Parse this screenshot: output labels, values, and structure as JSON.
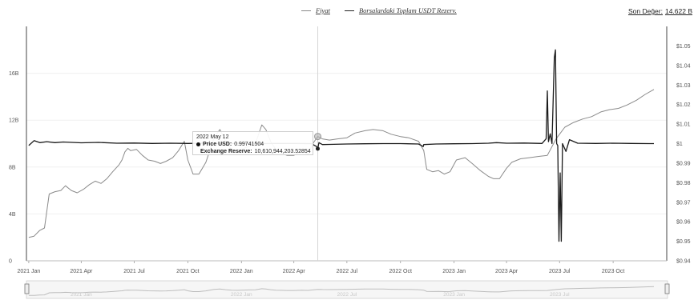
{
  "legend": {
    "price_label": "Fiyat",
    "reserve_label": "Borsalardaki Toplam USDT Rezerv."
  },
  "last_value": {
    "label": "Son Değer:",
    "value": "14.622 B"
  },
  "tooltip": {
    "date": "2022 May 12",
    "price_label": "Price USD:",
    "price_value": "0.99741504",
    "reserve_label": "Exchange Reserve:",
    "reserve_value": "10,610,944,203.52854"
  },
  "colors": {
    "price": "#1a1a1a",
    "reserve": "#8a8a8a",
    "grid": "#f0f0f0",
    "axis": "#444444"
  },
  "chart_data": {
    "type": "line",
    "x_ticks": [
      "2021 Jan",
      "2021 Apr",
      "2021 Jul",
      "2021 Oct",
      "2022 Jan",
      "2022 Apr",
      "2022 Jul",
      "2022 Oct",
      "2023 Jan",
      "2023 Apr",
      "2023 Jul",
      "2023 Oct"
    ],
    "y_left_ticks": [
      "0",
      "4B",
      "8B",
      "12B",
      "16B"
    ],
    "y_left_range": [
      0,
      20
    ],
    "y_right_ticks": [
      "$0.94",
      "$0.95",
      "$0.96",
      "$0.97",
      "$0.98",
      "$0.99",
      "$1",
      "$1.01",
      "$1.02",
      "$1.03",
      "$1.04",
      "$1.05"
    ],
    "y_right_range": [
      0.94,
      1.06
    ],
    "hover_date": "2022-05-12",
    "series": [
      {
        "name": "Borsalardaki Toplam USDT Rezerv.",
        "axis": "left",
        "unit": "B USD",
        "points": [
          [
            "2021-01-01",
            2.0
          ],
          [
            "2021-01-10",
            2.1
          ],
          [
            "2021-01-20",
            2.6
          ],
          [
            "2021-01-28",
            2.8
          ],
          [
            "2021-02-05",
            5.7
          ],
          [
            "2021-02-15",
            5.9
          ],
          [
            "2021-02-25",
            6.0
          ],
          [
            "2021-03-05",
            6.4
          ],
          [
            "2021-03-15",
            6.0
          ],
          [
            "2021-03-25",
            5.8
          ],
          [
            "2021-04-05",
            6.1
          ],
          [
            "2021-04-15",
            6.5
          ],
          [
            "2021-04-25",
            6.8
          ],
          [
            "2021-05-05",
            6.6
          ],
          [
            "2021-05-15",
            7.0
          ],
          [
            "2021-05-25",
            7.6
          ],
          [
            "2021-06-05",
            8.2
          ],
          [
            "2021-06-10",
            8.6
          ],
          [
            "2021-06-15",
            9.3
          ],
          [
            "2021-06-20",
            9.6
          ],
          [
            "2021-06-25",
            9.4
          ],
          [
            "2021-07-05",
            9.5
          ],
          [
            "2021-07-15",
            9.0
          ],
          [
            "2021-07-25",
            8.6
          ],
          [
            "2021-08-05",
            8.5
          ],
          [
            "2021-08-15",
            8.3
          ],
          [
            "2021-08-25",
            8.5
          ],
          [
            "2021-09-05",
            8.8
          ],
          [
            "2021-09-15",
            9.4
          ],
          [
            "2021-09-25",
            10.2
          ],
          [
            "2021-10-01",
            8.6
          ],
          [
            "2021-10-10",
            7.4
          ],
          [
            "2021-10-20",
            7.4
          ],
          [
            "2021-11-01",
            8.4
          ],
          [
            "2021-11-15",
            10.5
          ],
          [
            "2021-11-25",
            11.2
          ],
          [
            "2021-12-05",
            10.2
          ],
          [
            "2021-12-15",
            9.5
          ],
          [
            "2021-12-25",
            9.3
          ],
          [
            "2022-01-05",
            9.6
          ],
          [
            "2022-01-15",
            9.8
          ],
          [
            "2022-01-25",
            10.0
          ],
          [
            "2022-02-05",
            11.6
          ],
          [
            "2022-02-12",
            11.2
          ],
          [
            "2022-02-20",
            10.2
          ],
          [
            "2022-03-01",
            9.5
          ],
          [
            "2022-03-10",
            9.2
          ],
          [
            "2022-03-20",
            9.0
          ],
          [
            "2022-04-01",
            9.0
          ],
          [
            "2022-04-15",
            9.4
          ],
          [
            "2022-04-25",
            9.1
          ],
          [
            "2022-05-05",
            10.1
          ],
          [
            "2022-05-12",
            10.61
          ],
          [
            "2022-05-20",
            10.4
          ],
          [
            "2022-06-01",
            10.3
          ],
          [
            "2022-06-15",
            10.4
          ],
          [
            "2022-07-01",
            10.5
          ],
          [
            "2022-07-15",
            10.9
          ],
          [
            "2022-08-01",
            11.1
          ],
          [
            "2022-08-15",
            11.2
          ],
          [
            "2022-09-01",
            11.1
          ],
          [
            "2022-09-15",
            10.8
          ],
          [
            "2022-10-01",
            10.6
          ],
          [
            "2022-10-15",
            10.5
          ],
          [
            "2022-11-01",
            10.2
          ],
          [
            "2022-11-10",
            9.4
          ],
          [
            "2022-11-15",
            7.8
          ],
          [
            "2022-11-25",
            7.6
          ],
          [
            "2022-12-05",
            7.7
          ],
          [
            "2022-12-15",
            7.4
          ],
          [
            "2022-12-25",
            7.6
          ],
          [
            "2023-01-05",
            8.6
          ],
          [
            "2023-01-20",
            8.8
          ],
          [
            "2023-02-01",
            8.3
          ],
          [
            "2023-02-15",
            7.7
          ],
          [
            "2023-03-01",
            7.2
          ],
          [
            "2023-03-10",
            7.0
          ],
          [
            "2023-03-20",
            7.0
          ],
          [
            "2023-04-01",
            7.9
          ],
          [
            "2023-04-10",
            8.4
          ],
          [
            "2023-04-25",
            8.7
          ],
          [
            "2023-05-10",
            8.8
          ],
          [
            "2023-05-25",
            8.9
          ],
          [
            "2023-06-10",
            9.0
          ],
          [
            "2023-06-25",
            10.4
          ],
          [
            "2023-07-10",
            11.4
          ],
          [
            "2023-07-25",
            11.8
          ],
          [
            "2023-08-10",
            12.1
          ],
          [
            "2023-08-25",
            12.3
          ],
          [
            "2023-09-10",
            12.7
          ],
          [
            "2023-09-25",
            12.9
          ],
          [
            "2023-10-10",
            13.0
          ],
          [
            "2023-10-25",
            13.3
          ],
          [
            "2023-11-10",
            13.7
          ],
          [
            "2023-11-25",
            14.2
          ],
          [
            "2023-12-10",
            14.62
          ]
        ]
      },
      {
        "name": "Fiyat",
        "axis": "right",
        "unit": "USD",
        "points": [
          [
            "2021-01-01",
            0.999
          ],
          [
            "2021-01-10",
            1.0015
          ],
          [
            "2021-01-20",
            1.0005
          ],
          [
            "2021-02-01",
            1.001
          ],
          [
            "2021-02-15",
            1.0005
          ],
          [
            "2021-03-01",
            1.0008
          ],
          [
            "2021-04-01",
            1.0004
          ],
          [
            "2021-05-01",
            1.0006
          ],
          [
            "2021-06-01",
            1.0002
          ],
          [
            "2021-07-01",
            1.0003
          ],
          [
            "2021-08-01",
            1.0001
          ],
          [
            "2021-09-01",
            1.0002
          ],
          [
            "2021-10-01",
            1.0001
          ],
          [
            "2021-11-01",
            1.0002
          ],
          [
            "2021-12-01",
            1.0
          ],
          [
            "2022-01-01",
            1.0001
          ],
          [
            "2022-02-01",
            1.0
          ],
          [
            "2022-03-01",
            1.0001
          ],
          [
            "2022-04-01",
            1.0001
          ],
          [
            "2022-05-01",
            1.0
          ],
          [
            "2022-05-10",
            0.9985
          ],
          [
            "2022-05-12",
            0.9974
          ],
          [
            "2022-05-14",
            1.0005
          ],
          [
            "2022-05-20",
            0.9995
          ],
          [
            "2022-06-01",
            0.9996
          ],
          [
            "2022-07-01",
            0.9998
          ],
          [
            "2022-08-01",
            0.9999
          ],
          [
            "2022-09-01",
            1.0
          ],
          [
            "2022-10-01",
            1.0
          ],
          [
            "2022-11-01",
            0.9998
          ],
          [
            "2022-11-09",
            0.9985
          ],
          [
            "2022-11-10",
            0.9995
          ],
          [
            "2022-12-01",
            0.9998
          ],
          [
            "2023-01-01",
            0.9999
          ],
          [
            "2023-02-01",
            1.0
          ],
          [
            "2023-03-01",
            1.0002
          ],
          [
            "2023-03-15",
            1.0005
          ],
          [
            "2023-04-01",
            1.0002
          ],
          [
            "2023-05-01",
            1.0003
          ],
          [
            "2023-06-01",
            1.0001
          ],
          [
            "2023-06-08",
            1.0025
          ],
          [
            "2023-06-10",
            1.027
          ],
          [
            "2023-06-12",
            1.001
          ],
          [
            "2023-06-15",
            1.005
          ],
          [
            "2023-06-18",
            1.0
          ],
          [
            "2023-06-22",
            1.044
          ],
          [
            "2023-06-24",
            1.048
          ],
          [
            "2023-06-26",
            1.0
          ],
          [
            "2023-06-28",
            0.999
          ],
          [
            "2023-06-30",
            0.95
          ],
          [
            "2023-07-02",
            0.985
          ],
          [
            "2023-07-04",
            0.95
          ],
          [
            "2023-07-06",
            1.0
          ],
          [
            "2023-07-12",
            0.996
          ],
          [
            "2023-07-18",
            1.002
          ],
          [
            "2023-08-01",
            1.0002
          ],
          [
            "2023-09-01",
            1.0001
          ],
          [
            "2023-10-01",
            1.0002
          ],
          [
            "2023-11-01",
            1.0001
          ],
          [
            "2023-12-01",
            1.0
          ],
          [
            "2023-12-10",
            1.0
          ]
        ]
      }
    ]
  }
}
